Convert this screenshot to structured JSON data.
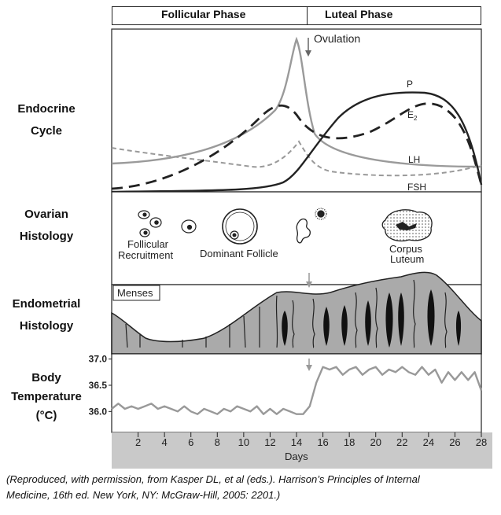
{
  "header": {
    "follicular_phase": "Follicular Phase",
    "luteal_phase": "Luteal Phase"
  },
  "rows": {
    "endocrine": {
      "line1": "Endocrine",
      "line2": "Cycle"
    },
    "ovarian": {
      "line1": "Ovarian",
      "line2": "Histology"
    },
    "endometrial": {
      "line1": "Endometrial",
      "line2": "Histology"
    },
    "temperature": {
      "line1": "Body",
      "line2": "Temperature",
      "line3": "(°C)"
    }
  },
  "endocrine_labels": {
    "ovulation": "Ovulation",
    "p": "P",
    "e2": "E",
    "e2_sub": "2",
    "lh": "LH",
    "fsh": "FSH"
  },
  "ovarian_labels": {
    "recruitment_1": "Follicular",
    "recruitment_2": "Recruitment",
    "dominant": "Dominant Follicle",
    "corpus_1": "Corpus",
    "corpus_2": "Luteum"
  },
  "endometrial_labels": {
    "menses": "Menses"
  },
  "chart_data": {
    "type": "line",
    "title": "Body Temperature (°C)",
    "xlabel": "Days",
    "ylabel": "Body Temperature (°C)",
    "x_ticks": [
      "2",
      "4",
      "6",
      "8",
      "10",
      "12",
      "14",
      "16",
      "18",
      "20",
      "22",
      "24",
      "26",
      "28"
    ],
    "y_ticks": [
      "37.0",
      "36.5",
      "36.0"
    ],
    "xlim": [
      0,
      28
    ],
    "ylim": [
      35.6,
      37.1
    ],
    "series": [
      {
        "name": "Body temperature",
        "x": [
          0,
          0.5,
          1,
          1.5,
          2,
          2.5,
          3,
          3.5,
          4,
          4.5,
          5,
          5.5,
          6,
          6.5,
          7,
          7.5,
          8,
          8.5,
          9,
          9.5,
          10,
          10.5,
          11,
          11.5,
          12,
          12.5,
          13,
          13.5,
          14,
          14.5,
          15,
          15.5,
          16,
          16.5,
          17,
          17.5,
          18,
          18.5,
          19,
          19.5,
          20,
          20.5,
          21,
          21.5,
          22,
          22.5,
          23,
          23.5,
          24,
          24.5,
          25,
          25.5,
          26,
          26.5,
          27,
          27.5,
          28
        ],
        "values": [
          36.05,
          36.15,
          36.05,
          36.1,
          36.05,
          36.1,
          36.15,
          36.05,
          36.1,
          36.05,
          36.0,
          36.1,
          36.0,
          35.95,
          36.05,
          36.0,
          35.95,
          36.05,
          36.0,
          36.1,
          36.05,
          36.0,
          36.1,
          35.95,
          36.05,
          35.95,
          36.05,
          36.0,
          35.95,
          35.95,
          36.1,
          36.55,
          36.85,
          36.8,
          36.85,
          36.7,
          36.8,
          36.85,
          36.7,
          36.8,
          36.85,
          36.7,
          36.8,
          36.75,
          36.85,
          36.75,
          36.7,
          36.85,
          36.7,
          36.8,
          36.55,
          36.75,
          36.6,
          36.75,
          36.6,
          36.75,
          36.4
        ]
      }
    ]
  },
  "caption": {
    "line1": "(Reproduced, with permission, from Kasper DL, et al (eds.). Harrison’s Principles of Internal",
    "line2": "Medicine, 16th ed. New York, NY: McGraw-Hill, 2005: 2201.)"
  }
}
